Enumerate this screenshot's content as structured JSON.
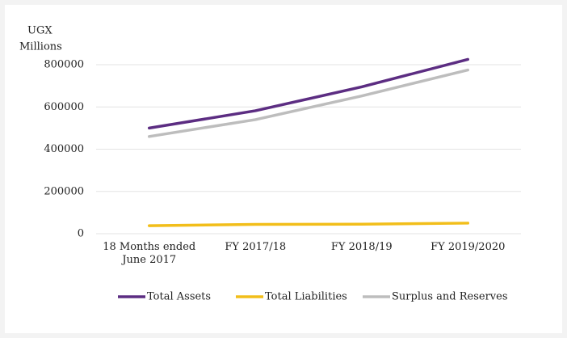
{
  "chart_data": {
    "type": "line",
    "ylabel": [
      "UGX",
      "Millions"
    ],
    "categories": [
      "18 Months ended June 2017",
      "FY 2017/18",
      "FY 2018/19",
      "FY 2019/2020"
    ],
    "series": [
      {
        "name": "Total Assets",
        "color": "#5c2d82",
        "values": [
          500000,
          582000,
          695000,
          825000
        ]
      },
      {
        "name": "Total Liabilities",
        "color": "#f2be1a",
        "values": [
          38000,
          44000,
          45000,
          50000
        ]
      },
      {
        "name": "Surplus and Reserves",
        "color": "#bdbdbd",
        "values": [
          460000,
          540000,
          652000,
          775000
        ]
      }
    ],
    "ylim": [
      0,
      800000
    ],
    "yticks": [
      0,
      200000,
      400000,
      600000,
      800000
    ],
    "grid": true,
    "legend": "bottom"
  }
}
